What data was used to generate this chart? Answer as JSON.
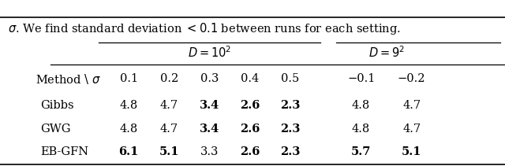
{
  "title_text": "σ. We find standard deviation < 0.1 between runs for each setting.",
  "sigma_cols_d10": [
    "0.1",
    "0.2",
    "0.3",
    "0.4",
    "0.5"
  ],
  "sigma_cols_d9": [
    "−0.1",
    "−0.2"
  ],
  "methods": [
    "Gibbs",
    "GWG",
    "EB-GFN"
  ],
  "data_d10": [
    [
      "4.8",
      "4.7",
      "3.4",
      "2.6",
      "2.3"
    ],
    [
      "4.8",
      "4.7",
      "3.4",
      "2.6",
      "2.3"
    ],
    [
      "6.1",
      "5.1",
      "3.3",
      "2.6",
      "2.3"
    ]
  ],
  "data_d9": [
    [
      "4.8",
      "4.7"
    ],
    [
      "4.8",
      "4.7"
    ],
    [
      "5.7",
      "5.1"
    ]
  ],
  "bold_d10": [
    [
      false,
      false,
      true,
      true,
      true
    ],
    [
      false,
      false,
      true,
      true,
      true
    ],
    [
      true,
      true,
      false,
      true,
      true
    ]
  ],
  "bold_d9": [
    [
      false,
      false
    ],
    [
      false,
      false
    ],
    [
      true,
      true
    ]
  ],
  "font_size": 10.5
}
